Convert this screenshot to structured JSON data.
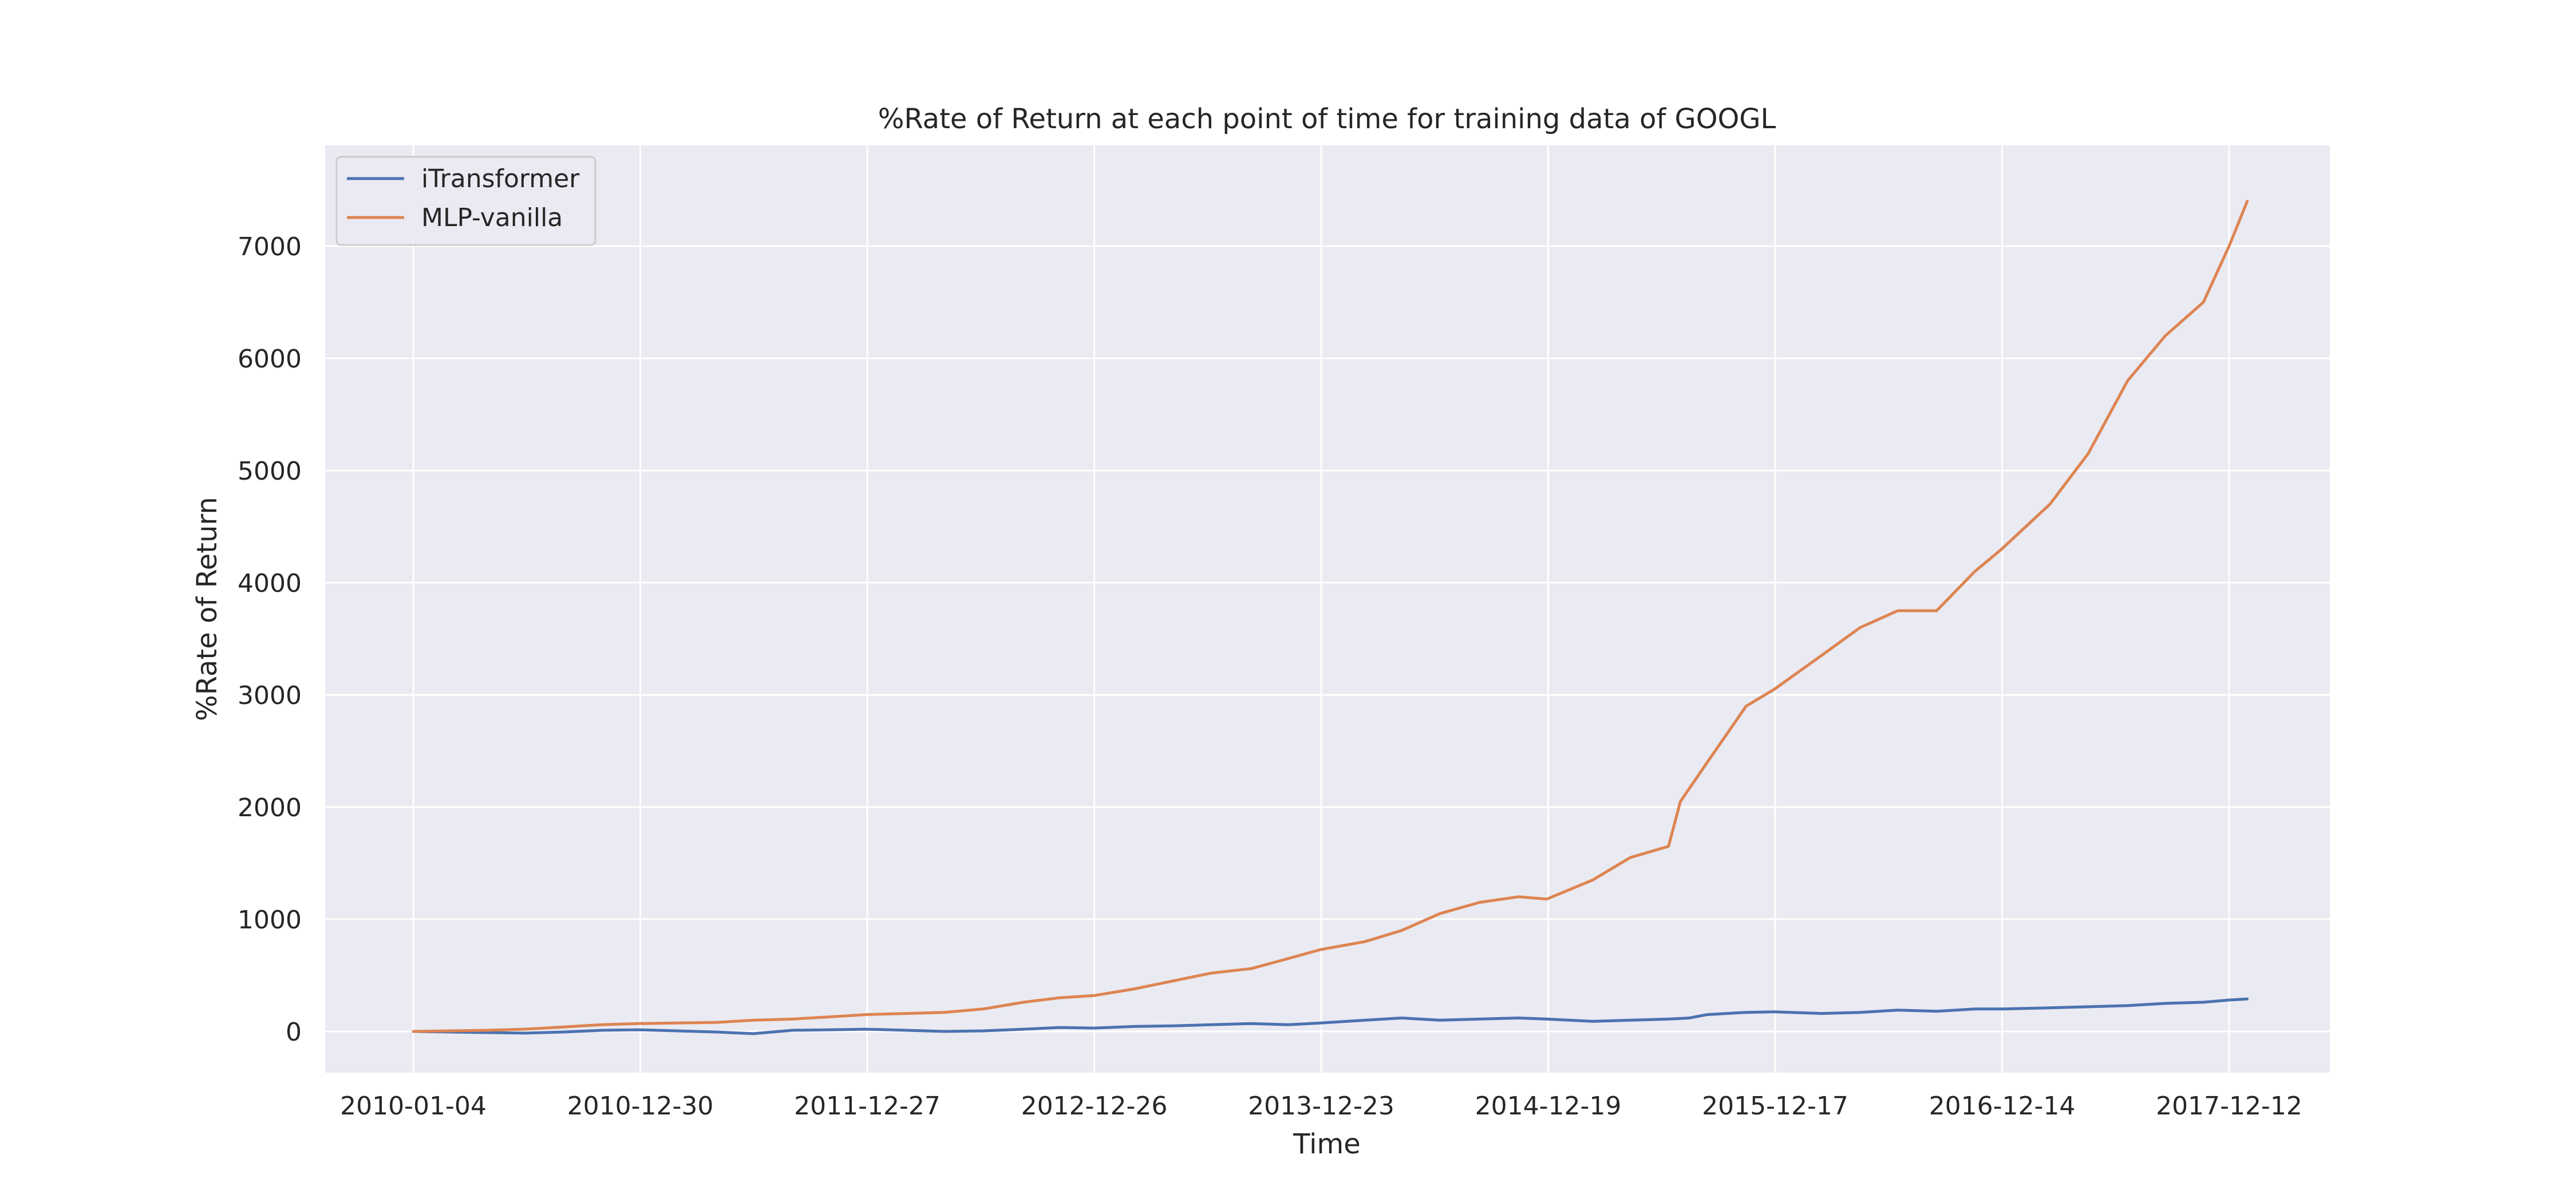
{
  "chart_data": {
    "type": "line",
    "title": "%Rate of Return at each point of time for training data of GOOGL",
    "xlabel": "Time",
    "ylabel": "%Rate of Return",
    "x_tick_labels": [
      "2010-01-04",
      "2010-12-30",
      "2011-12-27",
      "2012-12-26",
      "2013-12-23",
      "2014-12-19",
      "2015-12-17",
      "2016-12-14",
      "2017-12-12"
    ],
    "y_ticks": [
      0,
      1000,
      2000,
      3000,
      4000,
      5000,
      6000,
      7000
    ],
    "x_range": [
      "2010-01-04",
      "2017-12-12"
    ],
    "ylim": [
      -380,
      7850
    ],
    "grid": true,
    "legend_position": "upper left",
    "colors": {
      "background": "#eaeaf2",
      "grid": "#ffffff",
      "itransformer": "#4c72b0",
      "mlp": "#dd8452"
    },
    "series": [
      {
        "name": "iTransformer",
        "color": "#4c72b0",
        "x": [
          "2010-01-04",
          "2010-03-01",
          "2010-05-03",
          "2010-07-01",
          "2010-09-01",
          "2010-11-01",
          "2010-12-30",
          "2011-03-01",
          "2011-05-02",
          "2011-07-01",
          "2011-09-01",
          "2011-11-01",
          "2011-12-27",
          "2012-03-01",
          "2012-05-01",
          "2012-07-02",
          "2012-09-04",
          "2012-11-01",
          "2012-12-26",
          "2013-03-01",
          "2013-05-01",
          "2013-07-01",
          "2013-09-03",
          "2013-11-01",
          "2013-12-23",
          "2014-03-03",
          "2014-05-01",
          "2014-07-01",
          "2014-09-02",
          "2014-11-03",
          "2014-12-19",
          "2015-03-02",
          "2015-05-01",
          "2015-07-01",
          "2015-08-03",
          "2015-09-01",
          "2015-11-02",
          "2015-12-17",
          "2016-03-01",
          "2016-05-02",
          "2016-07-01",
          "2016-09-01",
          "2016-11-01",
          "2016-12-14",
          "2017-03-01",
          "2017-05-01",
          "2017-07-03",
          "2017-09-01",
          "2017-11-01",
          "2017-12-12",
          "2018-01-10"
        ],
        "y": [
          0,
          -5,
          -10,
          -15,
          -5,
          10,
          15,
          5,
          -5,
          -20,
          10,
          15,
          20,
          10,
          0,
          5,
          20,
          35,
          30,
          45,
          50,
          60,
          70,
          60,
          75,
          100,
          120,
          100,
          110,
          120,
          110,
          90,
          100,
          110,
          120,
          150,
          170,
          175,
          160,
          170,
          190,
          180,
          200,
          200,
          210,
          220,
          230,
          250,
          260,
          280,
          290
        ]
      },
      {
        "name": "MLP-vanilla",
        "color": "#dd8452",
        "x": [
          "2010-01-04",
          "2010-03-01",
          "2010-05-03",
          "2010-07-01",
          "2010-09-01",
          "2010-11-01",
          "2010-12-30",
          "2011-03-01",
          "2011-05-02",
          "2011-07-01",
          "2011-09-01",
          "2011-11-01",
          "2011-12-27",
          "2012-03-01",
          "2012-05-01",
          "2012-07-02",
          "2012-09-04",
          "2012-11-01",
          "2012-12-26",
          "2013-03-01",
          "2013-05-01",
          "2013-07-01",
          "2013-09-03",
          "2013-11-01",
          "2013-12-23",
          "2014-03-03",
          "2014-05-01",
          "2014-07-01",
          "2014-09-02",
          "2014-11-03",
          "2014-12-19",
          "2015-03-02",
          "2015-05-01",
          "2015-07-01",
          "2015-07-20",
          "2015-09-01",
          "2015-11-02",
          "2015-12-17",
          "2016-03-01",
          "2016-05-02",
          "2016-07-01",
          "2016-09-01",
          "2016-11-01",
          "2016-12-14",
          "2017-03-01",
          "2017-05-01",
          "2017-07-03",
          "2017-09-01",
          "2017-11-01",
          "2017-12-12",
          "2018-01-10"
        ],
        "y": [
          0,
          5,
          10,
          20,
          40,
          60,
          70,
          75,
          80,
          100,
          110,
          130,
          150,
          160,
          170,
          200,
          260,
          300,
          320,
          380,
          450,
          520,
          560,
          650,
          730,
          800,
          900,
          1050,
          1150,
          1200,
          1180,
          1350,
          1550,
          1650,
          2050,
          2400,
          2900,
          3050,
          3350,
          3600,
          3750,
          3750,
          4100,
          4300,
          4700,
          5150,
          5800,
          6200,
          6500,
          7000,
          7400
        ]
      }
    ]
  }
}
